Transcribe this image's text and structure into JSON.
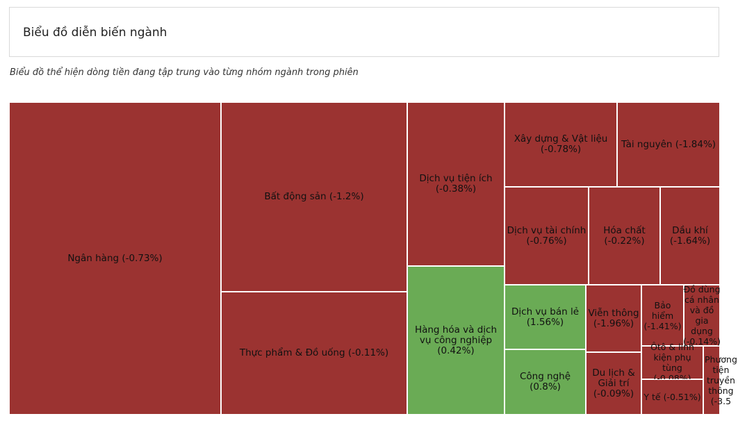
{
  "header": {
    "title": "Biểu đồ diễn biến ngành"
  },
  "subtitle": "Biểu đồ thể hiện dòng tiền đang tập trung vào từng nhóm ngành trong phiên",
  "colors": {
    "negative": "#9b3331",
    "positive": "#6aab55"
  },
  "chart_data": {
    "type": "treemap",
    "items": [
      {
        "name": "Ngân hàng",
        "change": -0.73,
        "label": "Ngân hàng (-0.73%)"
      },
      {
        "name": "Bất động sản",
        "change": -1.2,
        "label": "Bất động sản (-1.2%)"
      },
      {
        "name": "Thực phẩm & Đồ uống",
        "change": -0.11,
        "label": "Thực phẩm & Đồ uống (-0.11%)"
      },
      {
        "name": "Dịch vụ tiện ích",
        "change": -0.38,
        "label": "Dịch vụ tiện ích (-0.38%)"
      },
      {
        "name": "Hàng hóa và dịch vụ công nghiệp",
        "change": 0.42,
        "label": "Hàng hóa và dịch vụ công nghiệp (0.42%)"
      },
      {
        "name": "Xây dựng & Vật liệu",
        "change": -0.78,
        "label": "Xây dựng & Vật liệu (-0.78%)"
      },
      {
        "name": "Tài nguyên",
        "change": -1.84,
        "label": "Tài nguyên (-1.84%)"
      },
      {
        "name": "Dịch vụ tài chính",
        "change": -0.76,
        "label": "Dịch vụ tài chính (-0.76%)"
      },
      {
        "name": "Hóa chất",
        "change": -0.22,
        "label": "Hóa chất (-0.22%)"
      },
      {
        "name": "Dầu khí",
        "change": -1.64,
        "label": "Dầu khí (-1.64%)"
      },
      {
        "name": "Dịch vụ bán lẻ",
        "change": 1.56,
        "label": "Dịch vụ bán lẻ (1.56%)"
      },
      {
        "name": "Công nghệ",
        "change": 0.8,
        "label": "Công nghệ (0.8%)"
      },
      {
        "name": "Viễn thông",
        "change": -1.96,
        "label": "Viễn thông (-1.96%)"
      },
      {
        "name": "Du lịch & Giải trí",
        "change": -0.09,
        "label": "Du lịch & Giải trí (-0.09%)"
      },
      {
        "name": "Bảo hiểm",
        "change": -1.41,
        "label": "Bảo hiểm (-1.41%)"
      },
      {
        "name": "Đồ dùng cá nhân và đồ gia dụng",
        "change": -0.14,
        "label": "Đồ dùng cá nhân và đồ gia dụng (-0.14%)"
      },
      {
        "name": "Ôtô & linh kiện phụ tùng",
        "change": -0.08,
        "label": "Ôtô & linh kiện phụ tùng (-0.08%)"
      },
      {
        "name": "Y tế",
        "change": -0.51,
        "label": "Y tế (-0.51%)"
      },
      {
        "name": "Phương tiện truyền thông",
        "label": "Phương tiện truyền thông (-3.5"
      }
    ]
  }
}
